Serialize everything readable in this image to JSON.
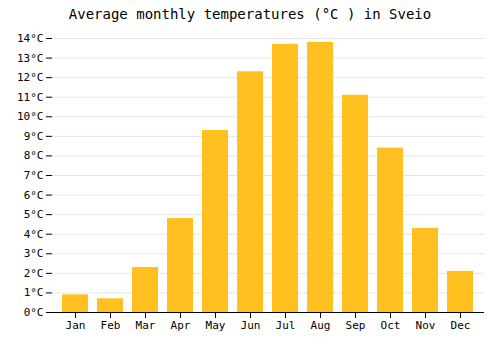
{
  "chart_data": {
    "type": "bar",
    "title": "Average monthly temperatures (°C ) in Sveio",
    "categories": [
      "Jan",
      "Feb",
      "Mar",
      "Apr",
      "May",
      "Jun",
      "Jul",
      "Aug",
      "Sep",
      "Oct",
      "Nov",
      "Dec"
    ],
    "values": [
      0.9,
      0.7,
      2.3,
      4.8,
      9.3,
      12.3,
      13.7,
      13.8,
      11.1,
      8.4,
      4.3,
      2.1
    ],
    "color": "#FFC020",
    "ylim": [
      0,
      14
    ],
    "yticks": [
      {
        "value": 0,
        "label": "0°C"
      },
      {
        "value": 1,
        "label": "1°C"
      },
      {
        "value": 2,
        "label": "2°C"
      },
      {
        "value": 3,
        "label": "3°C"
      },
      {
        "value": 4,
        "label": "4°C"
      },
      {
        "value": 5,
        "label": "5°C"
      },
      {
        "value": 6,
        "label": "6°C"
      },
      {
        "value": 7,
        "label": "7°C"
      },
      {
        "value": 8,
        "label": "8°C"
      },
      {
        "value": 9,
        "label": "9°C"
      },
      {
        "value": 10,
        "label": "10°C"
      },
      {
        "value": 11,
        "label": "11°C"
      },
      {
        "value": 12,
        "label": "12°C"
      },
      {
        "value": 13,
        "label": "13°C"
      },
      {
        "value": 14,
        "label": "14°C"
      }
    ],
    "grid": true
  }
}
